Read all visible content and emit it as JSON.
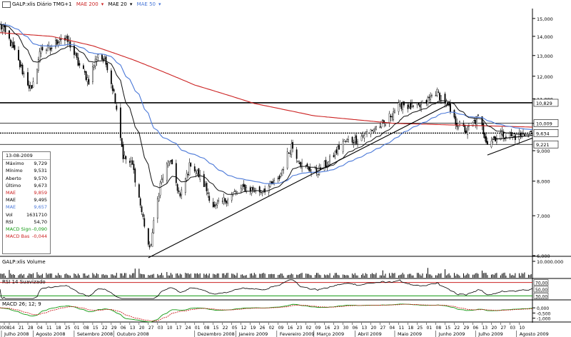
{
  "header": {
    "title": "GALP:xlis Diário TMG+1",
    "ma_labels": [
      "MAE 200",
      "MAE 20",
      "MAE 50"
    ]
  },
  "colors": {
    "price": "#000000",
    "mae200": "#cc2222",
    "mae20": "#111111",
    "mae50": "#4a78d8",
    "rsi": "#000000",
    "macd": "#119911",
    "macd_signal": "#cc2222",
    "volume": "#000000"
  },
  "info": {
    "date": "13-08-2009",
    "rows": [
      {
        "label": "Máximo",
        "value": "9,729"
      },
      {
        "label": "Mínimo",
        "value": "9,531"
      },
      {
        "label": "Aberto",
        "value": "9,570"
      },
      {
        "label": "Último",
        "value": "9,673"
      },
      {
        "label": "MAE",
        "value": "9,859"
      },
      {
        "label": "MAE",
        "value": "9,495"
      },
      {
        "label": "MAE",
        "value": "9,657"
      },
      {
        "label": "Vol",
        "value": "1631710"
      },
      {
        "label": "RSI",
        "value": "54,70"
      },
      {
        "label": "MACD Sign",
        "value": "-0,090"
      },
      {
        "label": "MACD Bas",
        "value": "-0,044"
      }
    ]
  },
  "panels": {
    "volume_title": "GALP:xlis Volume",
    "rsi_title": "RSI 14 Suavizado",
    "macd_title": "MACD 26; 12; 9"
  },
  "chart_data": {
    "type": "line",
    "title": "GALP:xlis Diário TMG+1",
    "ylim": [
      6,
      15.5
    ],
    "y_scale": "log",
    "y_ticks": [
      "15,000",
      "14,000",
      "13,000",
      "12,000",
      "11,000",
      "10,000",
      "9,000",
      "8,000",
      "7,000",
      "6,000"
    ],
    "price_labels": [
      "10,829",
      "10,009",
      "9,634",
      "9,221"
    ],
    "horizontal_levels": [
      10.829,
      10.009,
      9.634,
      9.221
    ],
    "months": [
      "Julho 2008",
      "Agosto 2008",
      "Setembro 2008",
      "Outubro 2008",
      "Dezembro 2008",
      "Janeiro 2009",
      "Fevereiro 2009",
      "Março 2009",
      "Abril 2009",
      "Maio 2009",
      "Junho 2009",
      "Julho 2009",
      "Agosto 2009"
    ],
    "day_ticks": [
      "2008",
      "14",
      "21",
      "28",
      "04",
      "11",
      "18",
      "25",
      "01",
      "08",
      "15",
      "22",
      "29",
      "06",
      "13",
      "20",
      "27",
      "03",
      "10",
      "17",
      "24",
      "01",
      "08",
      "15",
      "22",
      "05",
      "12",
      "19",
      "26",
      "02",
      "09",
      "16",
      "23",
      "02",
      "09",
      "16",
      "23",
      "30",
      "06",
      "13",
      "20",
      "27",
      "04",
      "11",
      "18",
      "25",
      "01",
      "08",
      "15",
      "22",
      "29",
      "06",
      "13",
      "20",
      "27",
      "03",
      "10"
    ],
    "x_start": "2008-07-07",
    "x_end": "2009-08-13",
    "close_anchors": [
      [
        "2008-07-07",
        14.6
      ],
      [
        "2008-07-14",
        13.8
      ],
      [
        "2008-07-22",
        12.5
      ],
      [
        "2008-07-31",
        11.3
      ],
      [
        "2008-08-07",
        13.4
      ],
      [
        "2008-08-14",
        13.3
      ],
      [
        "2008-08-21",
        13.9
      ],
      [
        "2008-08-28",
        13.7
      ],
      [
        "2008-09-04",
        12.6
      ],
      [
        "2008-09-12",
        11.8
      ],
      [
        "2008-09-19",
        13.1
      ],
      [
        "2008-09-26",
        12.5
      ],
      [
        "2008-10-02",
        11.0
      ],
      [
        "2008-10-08",
        8.8
      ],
      [
        "2008-10-15",
        8.5
      ],
      [
        "2008-10-22",
        7.1
      ],
      [
        "2008-10-28",
        6.1
      ],
      [
        "2008-11-05",
        7.9
      ],
      [
        "2008-11-12",
        8.7
      ],
      [
        "2008-11-20",
        7.5
      ],
      [
        "2008-11-28",
        8.6
      ],
      [
        "2008-12-08",
        7.9
      ],
      [
        "2008-12-16",
        7.2
      ],
      [
        "2008-12-29",
        7.6
      ],
      [
        "2009-01-08",
        7.8
      ],
      [
        "2009-01-20",
        7.7
      ],
      [
        "2009-02-02",
        8.0
      ],
      [
        "2009-02-12",
        9.2
      ],
      [
        "2009-02-20",
        8.5
      ],
      [
        "2009-03-03",
        8.3
      ],
      [
        "2009-03-12",
        8.6
      ],
      [
        "2009-03-23",
        9.3
      ],
      [
        "2009-04-02",
        9.4
      ],
      [
        "2009-04-15",
        9.8
      ],
      [
        "2009-04-24",
        10.0
      ],
      [
        "2009-04-30",
        10.5
      ],
      [
        "2009-05-07",
        10.8
      ],
      [
        "2009-05-15",
        10.6
      ],
      [
        "2009-05-22",
        10.7
      ],
      [
        "2009-06-01",
        11.3
      ],
      [
        "2009-06-08",
        10.9
      ],
      [
        "2009-06-15",
        10.1
      ],
      [
        "2009-06-24",
        9.7
      ],
      [
        "2009-07-03",
        10.2
      ],
      [
        "2009-07-10",
        9.3
      ],
      [
        "2009-07-20",
        9.6
      ],
      [
        "2009-07-30",
        9.5
      ],
      [
        "2009-08-07",
        9.6
      ],
      [
        "2009-08-13",
        9.67
      ]
    ],
    "mae200_anchors": [
      [
        "2008-07-07",
        14.2
      ],
      [
        "2008-08-15",
        14.0
      ],
      [
        "2008-09-15",
        13.5
      ],
      [
        "2008-10-15",
        12.8
      ],
      [
        "2008-12-01",
        11.6
      ],
      [
        "2009-01-15",
        10.8
      ],
      [
        "2009-03-01",
        10.3
      ],
      [
        "2009-05-01",
        10.0
      ],
      [
        "2009-08-13",
        9.86
      ]
    ],
    "trendlines": [
      {
        "from": [
          "2008-10-27",
          5.95
        ],
        "to": [
          "2009-06-12",
          10.8
        ]
      },
      {
        "from": [
          "2009-07-10",
          8.85
        ],
        "to": [
          "2009-08-13",
          9.45
        ]
      },
      {
        "from": [
          "2009-07-14",
          9.4
        ],
        "to": [
          "2009-08-13",
          9.55
        ]
      }
    ],
    "volume": {
      "ylim": [
        0,
        10000000
      ],
      "y_ticks": [
        "10.000.000"
      ]
    },
    "rsi": {
      "ylim": [
        20,
        80
      ],
      "y_ticks": [
        "70,00",
        "50,00",
        "30,00"
      ],
      "levels": [
        70,
        30
      ]
    },
    "macd": {
      "ylim": [
        -1.3,
        0.7
      ],
      "y_ticks": [
        "0,000",
        "-0,500",
        "-1,000"
      ]
    }
  }
}
